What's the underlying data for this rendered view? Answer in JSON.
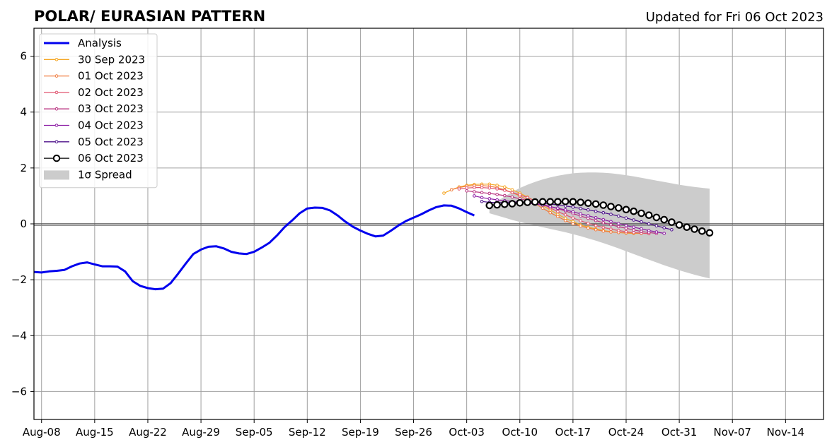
{
  "header": {
    "title": "POLAR/ EURASIAN  PATTERN",
    "updated": "Updated for Fri 06 Oct 2023"
  },
  "chart_data": {
    "type": "line",
    "title": "POLAR/ EURASIAN  PATTERN",
    "subtitle": "Updated for Fri 06 Oct 2023",
    "xlabel": "",
    "ylabel": "",
    "xlim": [
      "2023-08-07",
      "2023-11-19"
    ],
    "ylim": [
      -7,
      7
    ],
    "grid": true,
    "legend": "top-left",
    "x_ticks": [
      "Aug-08",
      "Aug-15",
      "Aug-22",
      "Aug-29",
      "Sep-05",
      "Sep-12",
      "Sep-19",
      "Sep-26",
      "Oct-03",
      "Oct-10",
      "Oct-17",
      "Oct-24",
      "Oct-31",
      "Nov-07",
      "Nov-14"
    ],
    "x_tick_dates": [
      "2023-08-08",
      "2023-08-15",
      "2023-08-22",
      "2023-08-29",
      "2023-09-05",
      "2023-09-12",
      "2023-09-19",
      "2023-09-26",
      "2023-10-03",
      "2023-10-10",
      "2023-10-17",
      "2023-10-24",
      "2023-10-31",
      "2023-11-07",
      "2023-11-14"
    ],
    "y_ticks": [
      -6,
      -4,
      -2,
      0,
      2,
      4,
      6
    ],
    "y_tick_labels": [
      "−6",
      "−4",
      "−2",
      "0",
      "2",
      "4",
      "6"
    ],
    "analysis": {
      "name": "Analysis",
      "color": "#0000ee",
      "start": "2023-08-07",
      "values": [
        -1.72,
        -1.74,
        -1.7,
        -1.68,
        -1.65,
        -1.52,
        -1.42,
        -1.38,
        -1.45,
        -1.52,
        -1.52,
        -1.53,
        -1.7,
        -2.05,
        -2.22,
        -2.3,
        -2.34,
        -2.32,
        -2.12,
        -1.78,
        -1.42,
        -1.08,
        -0.92,
        -0.82,
        -0.8,
        -0.88,
        -1.0,
        -1.06,
        -1.08,
        -1.0,
        -0.85,
        -0.68,
        -0.42,
        -0.12,
        0.12,
        0.38,
        0.55,
        0.58,
        0.57,
        0.48,
        0.3,
        0.08,
        -0.1,
        -0.24,
        -0.36,
        -0.45,
        -0.42,
        -0.25,
        -0.06,
        0.1,
        0.22,
        0.34,
        0.48,
        0.6,
        0.66,
        0.65,
        0.55,
        0.42,
        0.3
      ]
    },
    "forecasts": [
      {
        "name": "30 Sep 2023",
        "color": "#f5a623",
        "start": "2023-09-30",
        "values": [
          1.1,
          1.22,
          1.32,
          1.38,
          1.41,
          1.42,
          1.42,
          1.38,
          1.32,
          1.22,
          1.1,
          0.96,
          0.82,
          0.66,
          0.5,
          0.34,
          0.2,
          0.08,
          -0.04,
          -0.12,
          -0.18,
          -0.24,
          -0.28,
          -0.31,
          -0.33,
          -0.34,
          -0.34
        ]
      },
      {
        "name": "01 Oct 2023",
        "color": "#f07b3f",
        "start": "2023-10-01",
        "values": [
          1.22,
          1.3,
          1.35,
          1.37,
          1.37,
          1.35,
          1.3,
          1.22,
          1.12,
          1.0,
          0.86,
          0.72,
          0.56,
          0.4,
          0.26,
          0.12,
          0.0,
          -0.08,
          -0.15,
          -0.21,
          -0.26,
          -0.29,
          -0.31,
          -0.32,
          -0.32,
          -0.33
        ]
      },
      {
        "name": "02 Oct 2023",
        "color": "#e05570",
        "start": "2023-10-02",
        "values": [
          1.25,
          1.28,
          1.3,
          1.3,
          1.28,
          1.25,
          1.2,
          1.12,
          1.04,
          0.94,
          0.82,
          0.7,
          0.57,
          0.44,
          0.32,
          0.21,
          0.11,
          0.02,
          -0.06,
          -0.13,
          -0.19,
          -0.24,
          -0.28,
          -0.31,
          -0.33,
          -0.35
        ]
      },
      {
        "name": "03 Oct 2023",
        "color": "#b8317f",
        "start": "2023-10-03",
        "values": [
          1.18,
          1.15,
          1.12,
          1.09,
          1.05,
          1.01,
          0.96,
          0.9,
          0.84,
          0.77,
          0.7,
          0.62,
          0.54,
          0.46,
          0.37,
          0.28,
          0.2,
          0.12,
          0.04,
          -0.03,
          -0.1,
          -0.16,
          -0.22,
          -0.27,
          -0.31,
          -0.34
        ]
      },
      {
        "name": "04 Oct 2023",
        "color": "#8b1aa3",
        "start": "2023-10-04",
        "values": [
          1.0,
          0.94,
          0.9,
          0.86,
          0.83,
          0.8,
          0.77,
          0.74,
          0.71,
          0.67,
          0.62,
          0.56,
          0.5,
          0.43,
          0.36,
          0.29,
          0.22,
          0.15,
          0.08,
          0.01,
          -0.06,
          -0.12,
          -0.18,
          -0.24,
          -0.29,
          -0.34
        ]
      },
      {
        "name": "05 Oct 2023",
        "color": "#4b0f8a",
        "start": "2023-10-05",
        "values": [
          0.8,
          0.77,
          0.76,
          0.76,
          0.77,
          0.78,
          0.78,
          0.77,
          0.74,
          0.71,
          0.68,
          0.64,
          0.6,
          0.55,
          0.5,
          0.45,
          0.4,
          0.34,
          0.28,
          0.21,
          0.14,
          0.07,
          0.0,
          -0.07,
          -0.14,
          -0.21
        ]
      },
      {
        "name": "06 Oct 2023",
        "color": "#000000",
        "start": "2023-10-06",
        "values": [
          0.66,
          0.68,
          0.7,
          0.72,
          0.75,
          0.77,
          0.78,
          0.79,
          0.79,
          0.79,
          0.8,
          0.79,
          0.77,
          0.74,
          0.71,
          0.67,
          0.62,
          0.57,
          0.51,
          0.45,
          0.38,
          0.31,
          0.23,
          0.15,
          0.06,
          -0.04,
          -0.12,
          -0.19,
          -0.26,
          -0.32
        ]
      }
    ],
    "spread": {
      "name": "1σ Spread",
      "color": "#cccccc",
      "start": "2023-10-06",
      "upper": [
        0.62,
        0.8,
        0.98,
        1.14,
        1.28,
        1.4,
        1.5,
        1.59,
        1.66,
        1.72,
        1.77,
        1.81,
        1.83,
        1.84,
        1.84,
        1.83,
        1.81,
        1.78,
        1.74,
        1.7,
        1.65,
        1.6,
        1.55,
        1.5,
        1.45,
        1.4,
        1.36,
        1.32,
        1.29,
        1.26
      ],
      "lower": [
        0.38,
        0.3,
        0.22,
        0.14,
        0.07,
        0.0,
        -0.06,
        -0.12,
        -0.18,
        -0.24,
        -0.3,
        -0.37,
        -0.44,
        -0.52,
        -0.6,
        -0.69,
        -0.78,
        -0.88,
        -0.98,
        -1.08,
        -1.18,
        -1.28,
        -1.38,
        -1.48,
        -1.57,
        -1.66,
        -1.74,
        -1.82,
        -1.89,
        -1.95
      ]
    }
  }
}
